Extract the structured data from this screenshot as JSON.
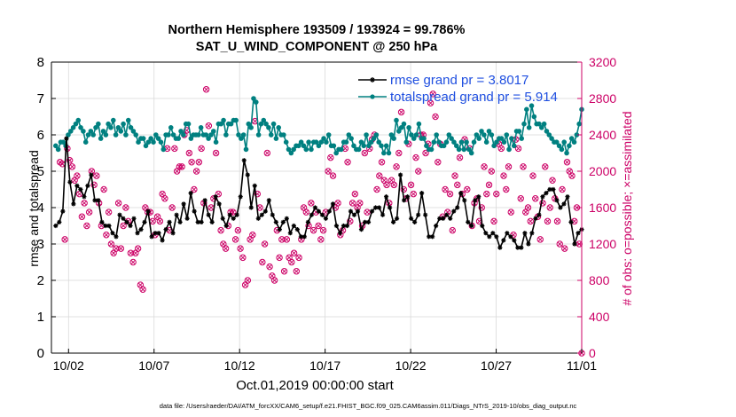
{
  "title_line1": "Northern Hemisphere 193509 / 193924 = 99.786%",
  "title_line2": "SAT_U_WIND_COMPONENT @ 250 hPa",
  "footer": "data file: /Users/raeder/DAI/ATM_forcXX/CAM6_setup/f.e21.FHIST_BGC.f09_025.CAM6assim.011/Diags_NTrS_2019-10/obs_diag_output.nc",
  "colors": {
    "rmse": "#000000",
    "totalspread": "#008080",
    "obs": "#cc0066",
    "legend_text": "#1f4fe0"
  },
  "chart_data": {
    "type": "line",
    "xlabel": "Oct.01,2019 00:00:00 start",
    "ylabel_left": "rmse and totalspread",
    "ylabel_right": "# of obs: o=possible; ×=assimilated",
    "xlim": [
      0,
      31
    ],
    "ylim_left": [
      0,
      8
    ],
    "ylim_right": [
      0,
      3200
    ],
    "x_ticks": [
      1,
      6,
      11,
      16,
      21,
      26,
      31
    ],
    "x_tick_labels": [
      "10/02",
      "10/07",
      "10/12",
      "10/17",
      "10/22",
      "10/27",
      "11/01"
    ],
    "y_ticks_left": [
      "0",
      "1",
      "2",
      "3",
      "4",
      "5",
      "6",
      "7",
      "8"
    ],
    "y_ticks_right": [
      "0",
      "400",
      "800",
      "1200",
      "1600",
      "2000",
      "2400",
      "2800",
      "3200"
    ],
    "legend_position": "top-right",
    "grid": true,
    "series": [
      {
        "name": "rmse grand pr = 3.8017",
        "axis": "left",
        "values": [
          3.5,
          3.6,
          3.9,
          5.9,
          4.7,
          4.1,
          4.6,
          4.5,
          4.3,
          4.6,
          4.9,
          4.2,
          4.2,
          3.6,
          3.5,
          3.5,
          3.3,
          3.2,
          3.8,
          3.7,
          3.6,
          3.5,
          3.7,
          3.3,
          3.4,
          3.6,
          3.9,
          3.2,
          3.3,
          3.3,
          3.1,
          3.4,
          3.6,
          3.3,
          3.8,
          3.6,
          4.1,
          3.7,
          4.4,
          3.9,
          3.6,
          3.6,
          4.2,
          3.8,
          3.6,
          4.3,
          4.1,
          3.7,
          3.5,
          3.8,
          3.7,
          3.8,
          4.3,
          5.3,
          4.9,
          4.0,
          4.6,
          3.7,
          3.8,
          3.9,
          4.2,
          3.8,
          3.6,
          3.4,
          3.6,
          3.7,
          3.3,
          3.5,
          3.4,
          3.2,
          3.2,
          3.6,
          3.8,
          4.0,
          3.9,
          3.8,
          3.7,
          3.9,
          4.1,
          3.5,
          3.3,
          3.5,
          3.5,
          3.9,
          3.8,
          3.9,
          3.4,
          3.6,
          3.6,
          3.9,
          4.0,
          4.0,
          3.8,
          4.3,
          4.0,
          3.6,
          3.7,
          4.9,
          4.2,
          4.3,
          3.7,
          3.6,
          3.8,
          4.4,
          3.8,
          3.2,
          3.2,
          3.5,
          3.7,
          3.7,
          3.8,
          3.7,
          3.9,
          4.0,
          4.4,
          4.2,
          3.6,
          3.5,
          4.2,
          4.3,
          3.5,
          3.3,
          3.2,
          3.3,
          3.2,
          2.9,
          3.1,
          3.3,
          3.2,
          3.1,
          2.9,
          2.9,
          3.3,
          3.0,
          3.3,
          3.7,
          3.8,
          4.3,
          4.4,
          4.5,
          4.5,
          4.2,
          4.0,
          4.1,
          4.3,
          3.6,
          3.0,
          3.3,
          3.4
        ]
      },
      {
        "name": "totalspread grand pr = 5.914",
        "axis": "left",
        "values": [
          5.7,
          5.6,
          5.8,
          5.8,
          5.7,
          6.0,
          6.1,
          6.2,
          6.3,
          6.4,
          6.2,
          6.1,
          5.8,
          6.0,
          6.1,
          6.0,
          6.2,
          6.3,
          5.9,
          6.1,
          6.0,
          6.3,
          6.2,
          6.4,
          6.0,
          6.2,
          6.1,
          6.3,
          6.0,
          6.4,
          6.2,
          6.1,
          6.0,
          5.8,
          5.9,
          5.9,
          5.7,
          5.8,
          5.9,
          5.8,
          6.0,
          5.9,
          5.8,
          5.6,
          6.0,
          6.0,
          6.2,
          6.0,
          5.9,
          5.9,
          6.1,
          6.0,
          6.3,
          6.3,
          5.9,
          6.0,
          6.0,
          6.0,
          6.2,
          6.0,
          6.0,
          5.9,
          6.0,
          6.1,
          5.8,
          6.3,
          6.3,
          6.4,
          6.0,
          6.3,
          6.3,
          6.4,
          6.4,
          6.0,
          5.9,
          6.0,
          5.6,
          6.3,
          6.2,
          7.0,
          6.9,
          6.0,
          6.3,
          6.4,
          6.3,
          6.2,
          6.0,
          6.3,
          5.9,
          6.2,
          6.0,
          6.0,
          5.8,
          5.6,
          5.5,
          5.6,
          5.7,
          5.7,
          5.8,
          5.7,
          5.6,
          5.8,
          5.6,
          5.8,
          5.8,
          5.7,
          5.8,
          5.9,
          5.8,
          6.0,
          5.7,
          5.7,
          5.5,
          5.6,
          5.6,
          5.8,
          5.8,
          6.0,
          5.9,
          5.7,
          5.6,
          5.6,
          5.8,
          5.7,
          6.0,
          5.7,
          5.8,
          5.9,
          6.0,
          5.8,
          5.7,
          5.5,
          5.7,
          5.5,
          6.0,
          5.9,
          6.4,
          6.1,
          6.2,
          6.3,
          5.8,
          6.2,
          6.0,
          5.9,
          6.0,
          6.3,
          5.9,
          5.9,
          5.7,
          5.6,
          5.6,
          5.8,
          6.0,
          5.8,
          5.7,
          5.7,
          5.8,
          6.0,
          5.9,
          5.8,
          5.7,
          5.6,
          5.8,
          5.6,
          5.8,
          5.6,
          5.5,
          5.8,
          6.0,
          5.9,
          6.1,
          6.0,
          5.8,
          6.1,
          6.0,
          5.7,
          5.8,
          5.9,
          5.9,
          5.8,
          6.0,
          5.6,
          5.9,
          5.7,
          6.1,
          6.1,
          5.9,
          6.3,
          6.7,
          6.2,
          6.8,
          6.5,
          6.3,
          6.3,
          6.2,
          6.3,
          6.1,
          6.0,
          5.9,
          5.8,
          5.8,
          5.7,
          5.6,
          5.8,
          5.5,
          5.7,
          5.9,
          5.8,
          6.0,
          6.3,
          6.7
        ]
      },
      {
        "name": "# of obs",
        "axis": "right",
        "values": [
          2100,
          2080,
          1250,
          2250,
          2120,
          2050,
          1900,
          1950,
          1750,
          1500,
          1650,
          1400,
          1550,
          2000,
          1850,
          1950,
          1650,
          1400,
          1800,
          1300,
          1550,
          1200,
          1100,
          1150,
          1650,
          1150,
          1400,
          1600,
          1450,
          1100,
          1000,
          1100,
          1150,
          750,
          700,
          1600,
          1550,
          1550,
          1450,
          1300,
          1500,
          1450,
          1750,
          1700,
          2250,
          1350,
          1600,
          2250,
          2000,
          2050,
          2050,
          2400,
          2450,
          2200,
          2100,
          1800,
          2000,
          2100,
          2250,
          1650,
          2900,
          2500,
          1600,
          1700,
          2200,
          1750,
          1350,
          1200,
          1150,
          1400,
          1550,
          1550,
          1250,
          1350,
          1150,
          1050,
          750,
          800,
          1250,
          1300,
          2550,
          1750,
          1600,
          1000,
          1200,
          2200,
          950,
          850,
          800,
          1350,
          1050,
          1250,
          900,
          1250,
          1050,
          1000,
          1100,
          900,
          1050,
          1250,
          1600,
          1550,
          1400,
          1650,
          1350,
          1550,
          1400,
          1250,
          1350,
          1550,
          2000,
          2150,
          1950,
          1600,
          1650,
          1300,
          1350,
          2250,
          2100,
          1450,
          1650,
          1750,
          1600,
          1650,
          1400,
          2200,
          1550,
          2250,
          2350,
          2400,
          1800,
          1950,
          2100,
          1900,
          1850,
          1650,
          1900,
          1850,
          2050,
          2200,
          2650,
          1800,
          1700,
          2300,
          1850,
          1750,
          2150,
          2000,
          2400,
          2400,
          2200,
          2300,
          2750,
          2850,
          2600,
          2100,
          2300,
          1500,
          1800,
          1550,
          1750,
          1350,
          1950,
          1850,
          2150,
          1750,
          2350,
          1800,
          2250,
          1400,
          1650,
          1700,
          1450,
          1600,
          2050,
          1750,
          1850,
          2000,
          1450,
          1750,
          2300,
          2250,
          1950,
          1800,
          2050,
          1550,
          1300,
          2350,
          2250,
          1700,
          2050,
          1550,
          1600,
          1450,
          1950,
          1700,
          1500,
          1250,
          1650,
          2050,
          1450,
          1600,
          1900,
          1700,
          1450,
          1200,
          1800,
          1150,
          2100,
          2000,
          1950,
          1450,
          1600,
          1200,
          0
        ]
      }
    ]
  }
}
